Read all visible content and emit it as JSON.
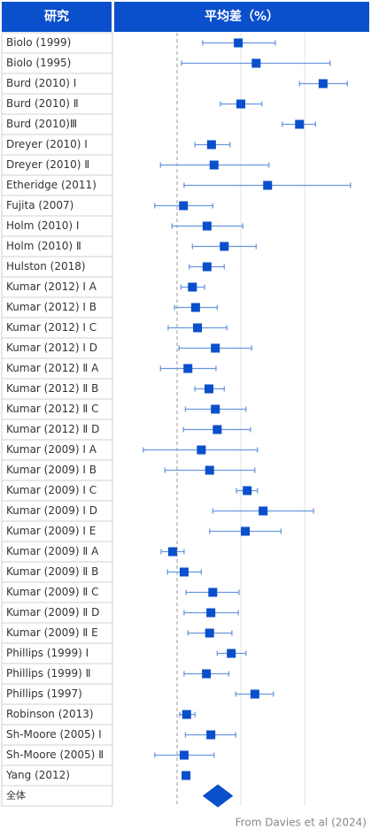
{
  "chart_data": {
    "type": "forest",
    "study_header": "研究",
    "title": "平均差（%）",
    "footer": "From Davies et al (2024)",
    "categories": [
      "Biolo (1999)",
      "Biolo (1995)",
      "Burd (2010) Ⅰ",
      "Burd (2010) Ⅱ",
      "Burd (2010)Ⅲ",
      "Dreyer (2010) Ⅰ",
      "Dreyer (2010) Ⅱ",
      "Etheridge (2011)",
      "Fujita (2007)",
      "Holm (2010) Ⅰ",
      "Holm (2010) Ⅱ",
      "Hulston (2018)",
      "Kumar (2012) Ⅰ A",
      "Kumar (2012) Ⅰ B",
      "Kumar (2012) Ⅰ C",
      "Kumar (2012) Ⅰ D",
      "Kumar (2012) Ⅱ A",
      "Kumar (2012) Ⅱ B",
      "Kumar (2012) Ⅱ C",
      "Kumar (2012) Ⅱ D",
      "Kumar (2009) Ⅰ A",
      "Kumar (2009) Ⅰ B",
      "Kumar (2009) Ⅰ C",
      "Kumar (2009) Ⅰ D",
      "Kumar (2009) Ⅰ E",
      "Kumar (2009) Ⅱ A",
      "Kumar (2009) Ⅱ B",
      "Kumar (2009) Ⅱ C",
      "Kumar (2009) Ⅱ D",
      "Kumar (2009) Ⅱ E",
      "Phillips (1999) Ⅰ",
      "Phillips (1999) Ⅱ",
      "Phillips (1997)",
      "Robinson (2013)",
      "Sh-Moore (2005) Ⅰ",
      "Sh-Moore (2005) Ⅱ",
      "Yang (2012)"
    ],
    "values": [
      0.96,
      1.24,
      2.29,
      1.0,
      1.92,
      0.54,
      0.58,
      1.42,
      0.1,
      0.47,
      0.74,
      0.47,
      0.24,
      0.29,
      0.32,
      0.6,
      0.17,
      0.5,
      0.6,
      0.63,
      0.38,
      0.51,
      1.1,
      1.35,
      1.07,
      -0.07,
      0.11,
      0.56,
      0.53,
      0.51,
      0.85,
      0.46,
      1.22,
      0.15,
      0.53,
      0.11,
      0.14
    ],
    "lower": [
      0.4,
      0.07,
      1.92,
      0.68,
      1.65,
      0.28,
      -0.26,
      0.11,
      -0.35,
      -0.08,
      0.24,
      0.19,
      0.06,
      -0.04,
      -0.14,
      0.03,
      -0.26,
      0.28,
      0.13,
      0.1,
      -0.53,
      -0.19,
      0.93,
      0.56,
      0.51,
      -0.25,
      -0.15,
      0.14,
      0.11,
      0.17,
      0.63,
      0.11,
      0.92,
      0.04,
      0.13,
      -0.35,
      0.12
    ],
    "upper": [
      1.54,
      2.4,
      2.67,
      1.33,
      2.17,
      0.83,
      1.44,
      2.72,
      0.56,
      1.03,
      1.24,
      0.74,
      0.43,
      0.63,
      0.78,
      1.17,
      0.61,
      0.74,
      1.08,
      1.15,
      1.26,
      1.22,
      1.26,
      2.14,
      1.63,
      0.11,
      0.38,
      0.97,
      0.96,
      0.86,
      1.08,
      0.81,
      1.51,
      0.28,
      0.92,
      0.58,
      0.16
    ],
    "summary": {
      "label": "全体",
      "value": 0.64,
      "lower": 0.4,
      "upper": 0.88
    },
    "xlim": [
      -1,
      3
    ],
    "gridlines": [
      1,
      2
    ],
    "reference_line": 0,
    "color": "#0a4fcb",
    "ci_color": "#6a97e0",
    "header_color": "#0a4fcb"
  }
}
